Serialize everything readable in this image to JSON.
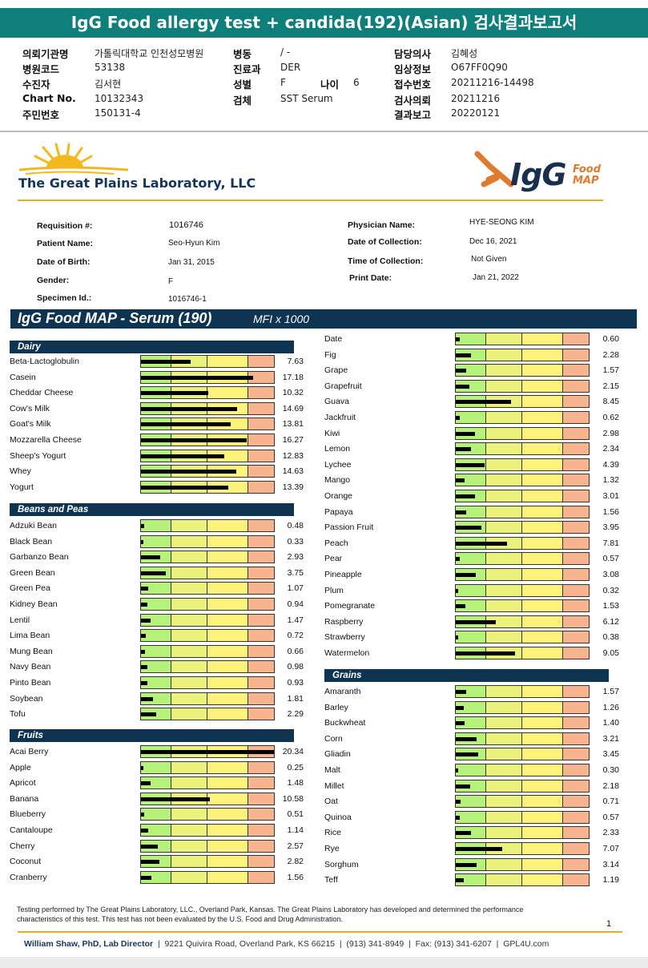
{
  "title": "IgG Food allergy test + candida(192)(Asian) 검사결과보고서",
  "header": [
    {
      "label": "의뢰기관명",
      "value": "가톨릭대학교 인천성모병원"
    },
    {
      "label": "병원코드",
      "value": "53138"
    },
    {
      "label": "수진자",
      "value": "김서현"
    },
    {
      "label": "Chart No.",
      "value": "10132343"
    },
    {
      "label": "주민번호",
      "value": "150131-4"
    },
    {
      "label": "병동",
      "value": "/ -"
    },
    {
      "label": "진료과",
      "value": "DER"
    },
    {
      "label": "성별",
      "value": "F"
    },
    {
      "label": "나이",
      "value": "6"
    },
    {
      "label": "검체",
      "value": "SST Serum"
    },
    {
      "label": "담당의사",
      "value": "김혜성"
    },
    {
      "label": "임상정보",
      "value": "O67FF0Q90"
    },
    {
      "label": "접수번호",
      "value": "20211216-14498"
    },
    {
      "label": "검사의뢰",
      "value": "20211216"
    },
    {
      "label": "결과보고",
      "value": "20220121"
    }
  ],
  "lab_name": "The Great Plains Laboratory, LLC",
  "logo": {
    "igg": "IgG",
    "food": "Food",
    "map": "MAP"
  },
  "patient": {
    "requisition_label": "Requisition #:",
    "requisition": "1016746",
    "name_label": "Patient Name:",
    "name": "Seo-Hyun Kim",
    "dob_label": "Date of Birth:",
    "dob": "Jan 31, 2015",
    "gender_label": "Gender:",
    "gender": "F",
    "specimen_label": "Specimen Id.:",
    "specimen": "1016746-1",
    "physician_label": "Physician Name:",
    "physician": "HYE-SEONG KIM",
    "collection_date_label": "Date of Collection:",
    "collection_date": "Dec 16, 2021",
    "collection_time_label": "Time of Collection:",
    "collection_time": "Not Given",
    "print_date_label": "Print Date:",
    "print_date": "Jan 21, 2022"
  },
  "serum_title": "IgG Food MAP - Serum (190)",
  "mfi_label": "MFI x 1000",
  "sections": [
    {
      "name": "Dairy",
      "items": [
        {
          "name": "Beta-Lactoglobulin",
          "value": 7.63,
          "display": "7.63"
        },
        {
          "name": "Casein",
          "value": 17.18,
          "display": "17.18"
        },
        {
          "name": "Cheddar Cheese",
          "value": 10.32,
          "display": "10.32"
        },
        {
          "name": "Cow's Milk",
          "value": 14.69,
          "display": "14.69"
        },
        {
          "name": "Goat's Milk",
          "value": 13.81,
          "display": "13.81"
        },
        {
          "name": "Mozzarella Cheese",
          "value": 16.27,
          "display": "16.27"
        },
        {
          "name": "Sheep's Yogurt",
          "value": 12.83,
          "display": "12.83"
        },
        {
          "name": "Whey",
          "value": 14.63,
          "display": "14.63"
        },
        {
          "name": "Yogurt",
          "value": 13.39,
          "display": "13.39"
        }
      ]
    },
    {
      "name": "Beans and Peas",
      "items": [
        {
          "name": "Adzuki Bean",
          "value": 0.48,
          "display": "0.48"
        },
        {
          "name": "Black Bean",
          "value": 0.33,
          "display": "0.33"
        },
        {
          "name": "Garbanzo Bean",
          "value": 2.93,
          "display": "2.93"
        },
        {
          "name": "Green Bean",
          "value": 3.75,
          "display": "3.75"
        },
        {
          "name": "Green Pea",
          "value": 1.07,
          "display": "1.07"
        },
        {
          "name": "Kidney Bean",
          "value": 0.94,
          "display": "0.94"
        },
        {
          "name": "Lentil",
          "value": 1.47,
          "display": "1.47"
        },
        {
          "name": "Lima Bean",
          "value": 0.72,
          "display": "0.72"
        },
        {
          "name": "Mung Bean",
          "value": 0.66,
          "display": "0.66"
        },
        {
          "name": "Navy Bean",
          "value": 0.98,
          "display": "0.98"
        },
        {
          "name": "Pinto Bean",
          "value": 0.93,
          "display": "0.93"
        },
        {
          "name": "Soybean",
          "value": 1.81,
          "display": "1.81"
        },
        {
          "name": "Tofu",
          "value": 2.29,
          "display": "2.29"
        }
      ]
    },
    {
      "name": "Fruits",
      "items": [
        {
          "name": "Acai Berry",
          "value": 20.34,
          "display": "20.34"
        },
        {
          "name": "Apple",
          "value": 0.25,
          "display": "0.25"
        },
        {
          "name": "Apricot",
          "value": 1.48,
          "display": "1.48"
        },
        {
          "name": "Banana",
          "value": 10.58,
          "display": "10.58"
        },
        {
          "name": "Blueberry",
          "value": 0.51,
          "display": "0.51"
        },
        {
          "name": "Cantaloupe",
          "value": 1.14,
          "display": "1.14"
        },
        {
          "name": "Cherry",
          "value": 2.57,
          "display": "2.57"
        },
        {
          "name": "Coconut",
          "value": 2.82,
          "display": "2.82"
        },
        {
          "name": "Cranberry",
          "value": 1.56,
          "display": "1.56"
        },
        {
          "name": "Date",
          "value": 0.6,
          "display": "0.60"
        },
        {
          "name": "Fig",
          "value": 2.28,
          "display": "2.28"
        },
        {
          "name": "Grape",
          "value": 1.57,
          "display": "1.57"
        },
        {
          "name": "Grapefruit",
          "value": 2.15,
          "display": "2.15"
        },
        {
          "name": "Guava",
          "value": 8.45,
          "display": "8.45"
        },
        {
          "name": "Jackfruit",
          "value": 0.62,
          "display": "0.62"
        },
        {
          "name": "Kiwi",
          "value": 2.98,
          "display": "2.98"
        },
        {
          "name": "Lemon",
          "value": 2.34,
          "display": "2.34"
        },
        {
          "name": "Lychee",
          "value": 4.39,
          "display": "4.39"
        },
        {
          "name": "Mango",
          "value": 1.32,
          "display": "1.32"
        },
        {
          "name": "Orange",
          "value": 3.01,
          "display": "3.01"
        },
        {
          "name": "Papaya",
          "value": 1.56,
          "display": "1.56"
        },
        {
          "name": "Passion Fruit",
          "value": 3.95,
          "display": "3.95"
        },
        {
          "name": "Peach",
          "value": 7.81,
          "display": "7.81"
        },
        {
          "name": "Pear",
          "value": 0.57,
          "display": "0.57"
        },
        {
          "name": "Pineapple",
          "value": 3.08,
          "display": "3.08"
        },
        {
          "name": "Plum",
          "value": 0.32,
          "display": "0.32"
        },
        {
          "name": "Pomegranate",
          "value": 1.53,
          "display": "1.53"
        },
        {
          "name": "Raspberry",
          "value": 6.12,
          "display": "6.12"
        },
        {
          "name": "Strawberry",
          "value": 0.38,
          "display": "0.38"
        },
        {
          "name": "Watermelon",
          "value": 9.05,
          "display": "9.05"
        }
      ]
    },
    {
      "name": "Grains",
      "items": [
        {
          "name": "Amaranth",
          "value": 1.57,
          "display": "1.57"
        },
        {
          "name": "Barley",
          "value": 1.26,
          "display": "1.26"
        },
        {
          "name": "Buckwheat",
          "value": 1.4,
          "display": "1.40"
        },
        {
          "name": "Corn",
          "value": 3.21,
          "display": "3.21"
        },
        {
          "name": "Gliadin",
          "value": 3.45,
          "display": "3.45"
        },
        {
          "name": "Malt",
          "value": 0.3,
          "display": "0.30"
        },
        {
          "name": "Millet",
          "value": 2.18,
          "display": "2.18"
        },
        {
          "name": "Oat",
          "value": 0.71,
          "display": "0.71"
        },
        {
          "name": "Quinoa",
          "value": 0.57,
          "display": "0.57"
        },
        {
          "name": "Rice",
          "value": 2.33,
          "display": "2.33"
        },
        {
          "name": "Rye",
          "value": 7.07,
          "display": "7.07"
        },
        {
          "name": "Sorghum",
          "value": 3.14,
          "display": "3.14"
        },
        {
          "name": "Teff",
          "value": 1.19,
          "display": "1.19"
        }
      ]
    }
  ],
  "zone_colors": [
    "#b6f27a",
    "#eaf27c",
    "#fdf37a",
    "#f8b48e"
  ],
  "footnote_line1": "Testing performed by The Great Plains Laboratory, LLC., Overland Park, Kansas.  The Great Plains Laboratory has developed and determined the performance",
  "footnote_line2": "characteristics of this test.  This test has not been evaluated by the U.S.  Food and Drug Administration.",
  "page_number": "1",
  "footer": {
    "director": "William Shaw, PhD, Lab Director",
    "address": "9221 Quivira Road, Overland Park, KS 66215",
    "phone": "(913) 341-8949",
    "fax": "Fax: (913) 341-6207",
    "web": "GPL4U.com"
  }
}
